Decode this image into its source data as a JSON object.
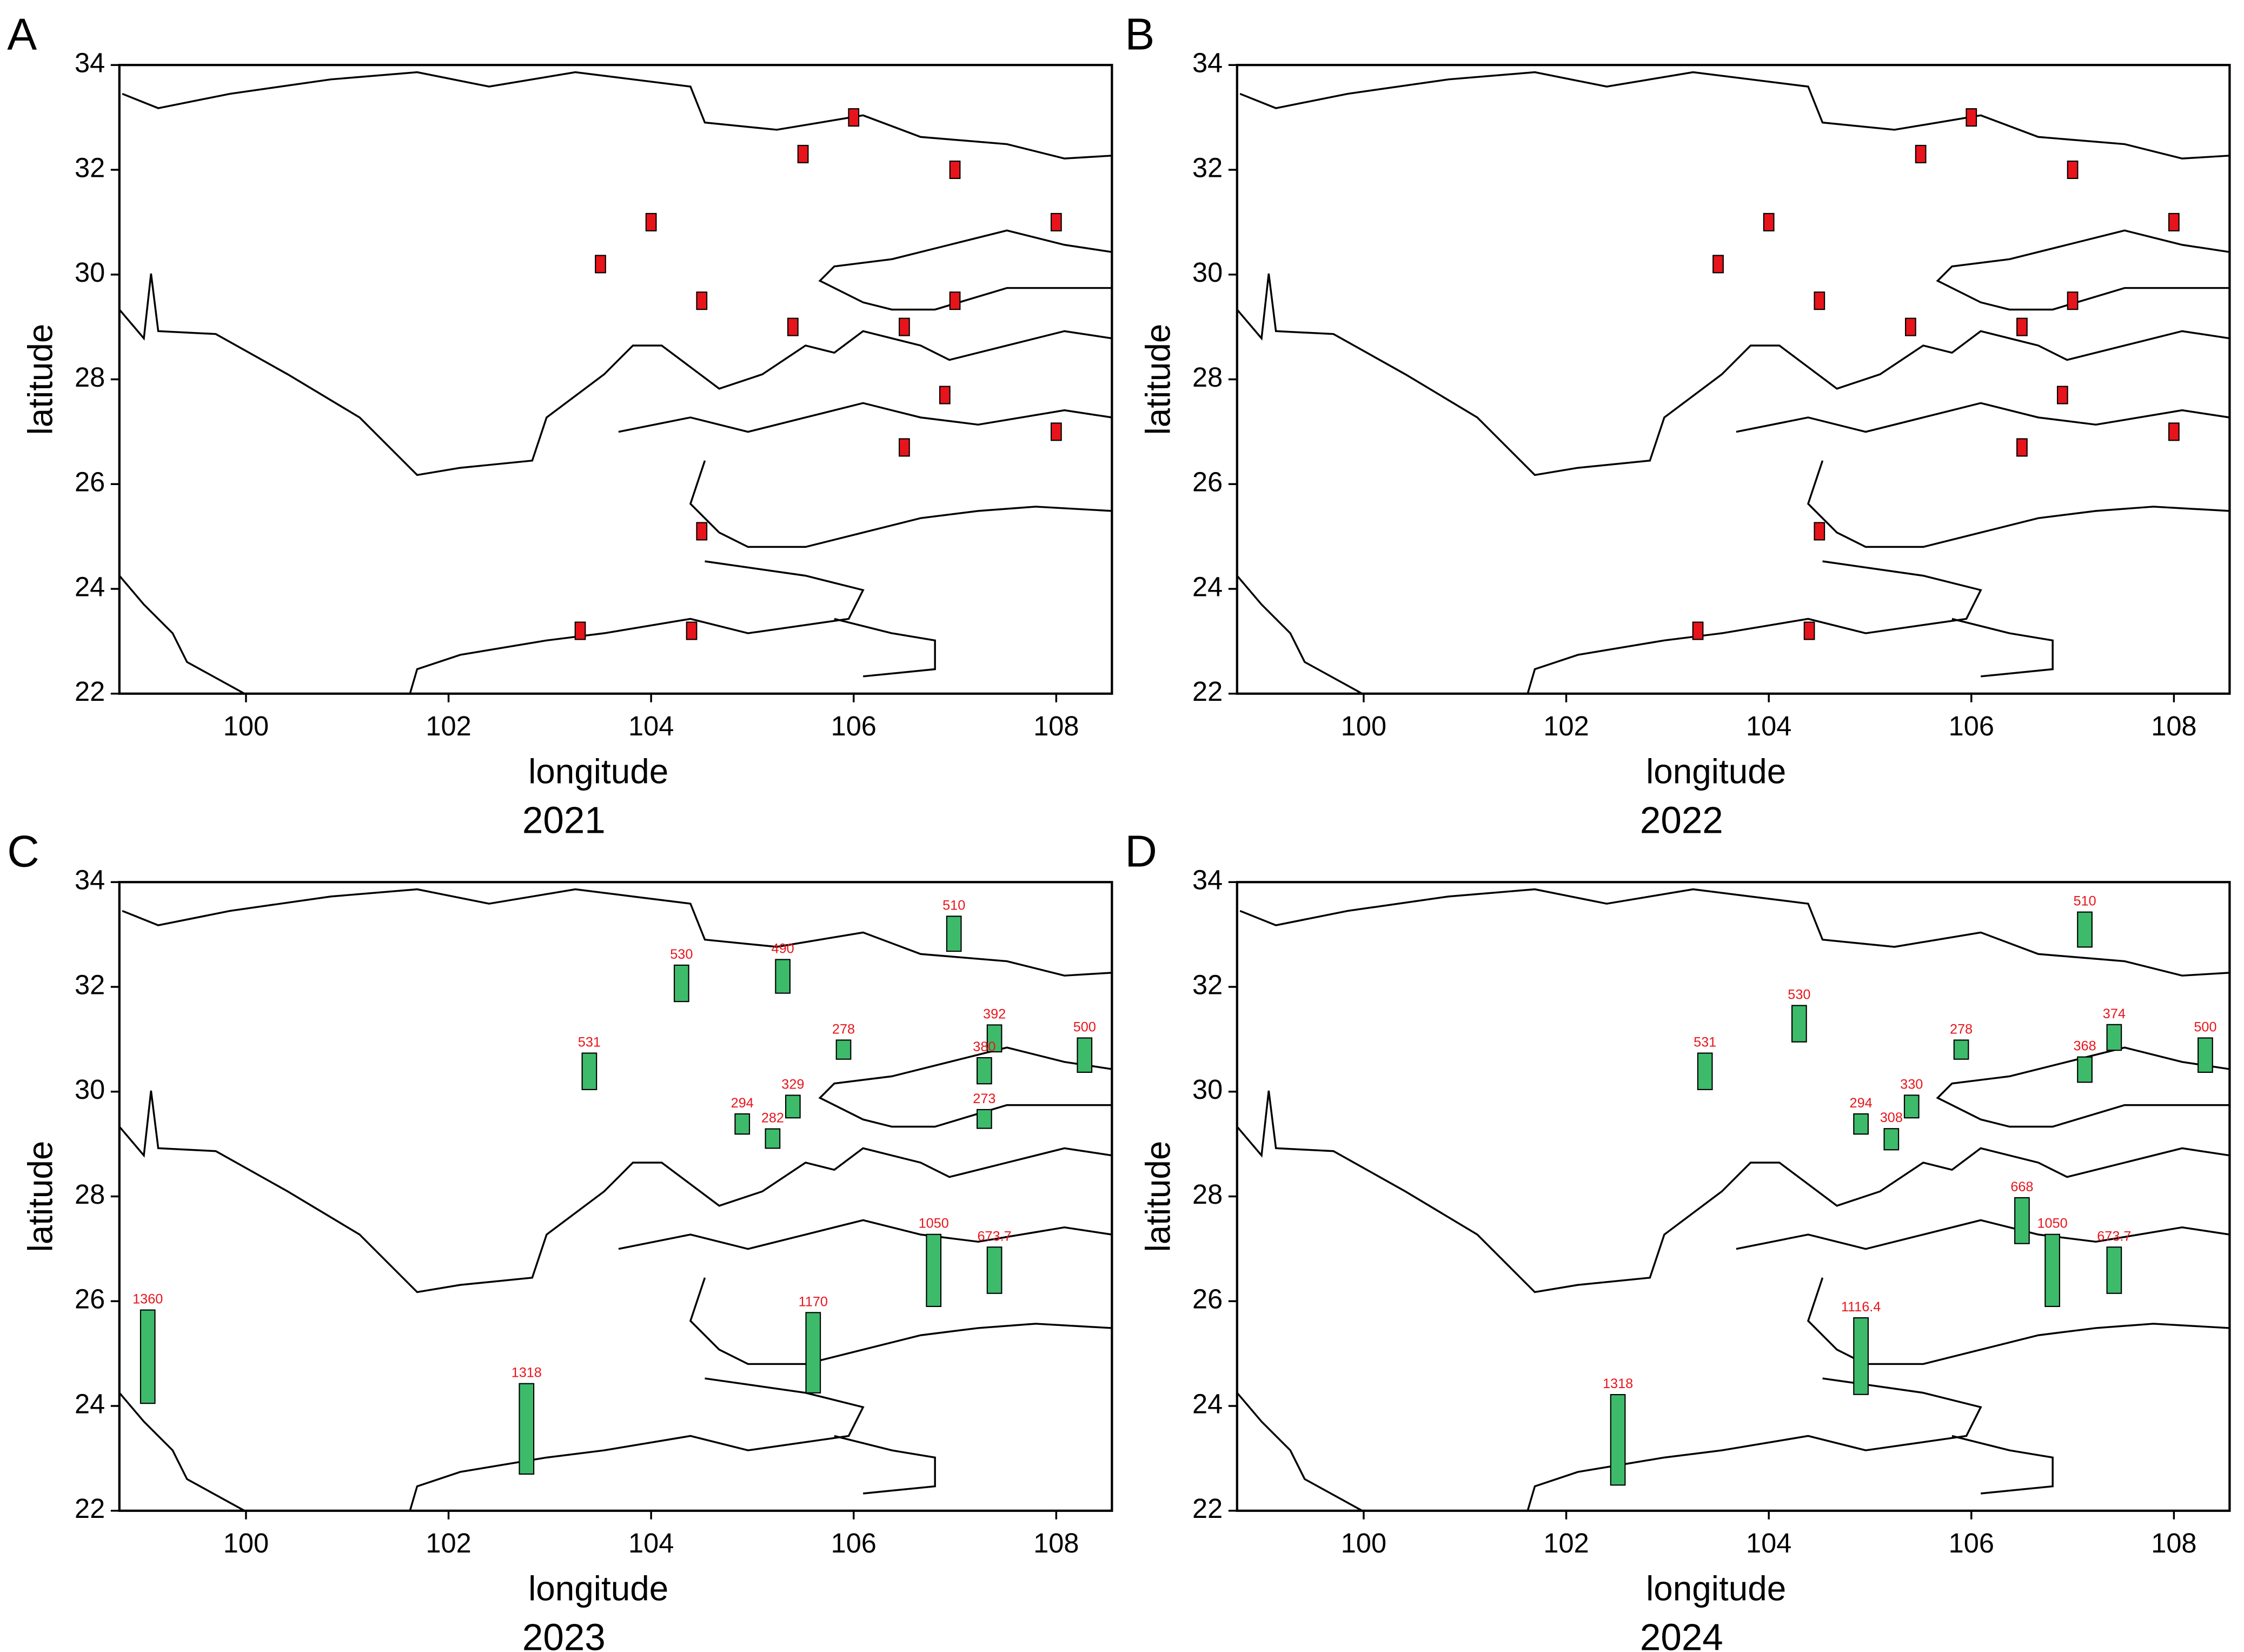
{
  "chart_data": [
    {
      "type": "scatter",
      "panel_label": "A",
      "caption": "2021",
      "xlabel": "longitude",
      "ylabel": "latitude",
      "color": "#e8141b",
      "xlim": [
        98.75,
        108.55
      ],
      "ylim": [
        22,
        34
      ],
      "xticks": [
        100,
        102,
        104,
        106,
        108
      ],
      "yticks": [
        22,
        24,
        26,
        28,
        30,
        32,
        34
      ],
      "x": [
        106,
        105.5,
        107,
        104,
        108,
        103.5,
        104.5,
        107,
        105.4,
        106.5,
        106.9,
        108,
        106.5,
        104.5,
        103.3,
        104.4
      ],
      "y": [
        33,
        32.3,
        32,
        31,
        31,
        30.2,
        29.5,
        29.5,
        29,
        29,
        27.7,
        27,
        26.7,
        25.1,
        23.2,
        23.2
      ]
    },
    {
      "type": "scatter",
      "panel_label": "B",
      "caption": "2022",
      "xlabel": "longitude",
      "ylabel": "latitude",
      "color": "#e8141b",
      "xlim": [
        98.75,
        108.55
      ],
      "ylim": [
        22,
        34
      ],
      "xticks": [
        100,
        102,
        104,
        106,
        108
      ],
      "yticks": [
        22,
        24,
        26,
        28,
        30,
        32,
        34
      ],
      "x": [
        106,
        105.5,
        107,
        104,
        108,
        103.5,
        104.5,
        107,
        105.4,
        106.5,
        106.9,
        108,
        106.5,
        104.5,
        103.3,
        104.4
      ],
      "y": [
        33,
        32.3,
        32,
        31,
        31,
        30.2,
        29.5,
        29.5,
        29,
        29,
        27.7,
        27,
        26.7,
        25.1,
        23.2,
        23.2
      ]
    },
    {
      "type": "bar",
      "panel_label": "C",
      "caption": "2023",
      "xlabel": "longitude",
      "ylabel": "latitude",
      "color": "#3dbb6a",
      "xlim": [
        98.75,
        108.55
      ],
      "ylim": [
        22,
        34
      ],
      "xticks": [
        100,
        102,
        104,
        106,
        108
      ],
      "yticks": [
        22,
        24,
        26,
        28,
        30,
        32,
        34
      ],
      "x": [
        99.03,
        102.77,
        105.6,
        106.79,
        107.39,
        106.99,
        105.3,
        104.3,
        103.39,
        105.9,
        107.39,
        107.29,
        108.28,
        105.4,
        104.9,
        105.2,
        107.29
      ],
      "y": [
        24.05,
        22.7,
        24.25,
        25.9,
        26.15,
        32.68,
        31.88,
        31.72,
        30.04,
        30.62,
        30.76,
        30.15,
        30.37,
        29.5,
        29.19,
        28.92,
        29.3
      ],
      "values": [
        1360,
        1318,
        1170,
        1050,
        673.7,
        510,
        490,
        530,
        531,
        278,
        392,
        380,
        500,
        329,
        294,
        282,
        273
      ]
    },
    {
      "type": "bar",
      "panel_label": "D",
      "caption": "2024",
      "xlabel": "longitude",
      "ylabel": "latitude",
      "color": "#3dbb6a",
      "xlim": [
        98.75,
        108.55
      ],
      "ylim": [
        22,
        34
      ],
      "xticks": [
        100,
        102,
        104,
        106,
        108
      ],
      "yticks": [
        22,
        24,
        26,
        28,
        30,
        32,
        34
      ],
      "x": [
        107.12,
        104.3,
        103.37,
        105.9,
        107.41,
        107.12,
        108.31,
        105.41,
        104.91,
        105.21,
        106.5,
        106.8,
        107.41,
        104.91,
        102.51
      ],
      "y": [
        32.76,
        30.95,
        30.04,
        30.62,
        30.79,
        30.18,
        30.37,
        29.5,
        29.19,
        28.89,
        27.1,
        25.9,
        26.15,
        24.22,
        22.49
      ],
      "values": [
        510,
        530,
        531,
        278,
        374,
        368,
        500,
        330,
        294,
        308,
        668,
        1050,
        673.7,
        1116.4,
        1318
      ]
    }
  ]
}
